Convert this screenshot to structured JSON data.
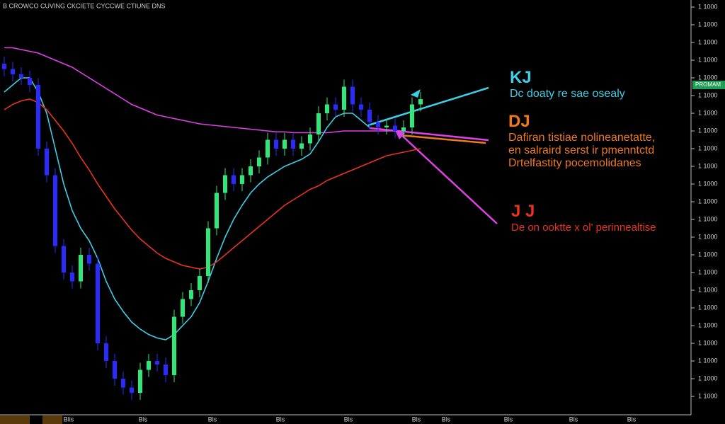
{
  "header": {
    "title": "B CROWCO CUVING CKCIETE CYCCWE CTIUNE DNS"
  },
  "chart_data": {
    "type": "candlestick",
    "ylim": [
      0,
      23.4
    ],
    "yticks": [
      {
        "value": 1,
        "label": "1 1000"
      },
      {
        "value": 2,
        "label": "1 1000"
      },
      {
        "value": 3,
        "label": "1 1000"
      },
      {
        "value": 4,
        "label": "1 1000"
      },
      {
        "value": 5,
        "label": "1 1000"
      },
      {
        "value": 6,
        "label": "1 1000"
      },
      {
        "value": 7,
        "label": "1 1000"
      },
      {
        "value": 8,
        "label": "1 1000"
      },
      {
        "value": 9,
        "label": "1 1000"
      },
      {
        "value": 10,
        "label": "1 1000"
      },
      {
        "value": 11,
        "label": "1 1000"
      },
      {
        "value": 12,
        "label": "1 1000"
      },
      {
        "value": 13,
        "label": "1 1000"
      },
      {
        "value": 14,
        "label": "1 1000"
      },
      {
        "value": 15,
        "label": "1 1000"
      },
      {
        "value": 16,
        "label": "1 1000"
      },
      {
        "value": 17,
        "label": "1 1000"
      },
      {
        "value": 18,
        "label": "1 1000"
      },
      {
        "value": 19,
        "label": "1 1000"
      },
      {
        "value": 20,
        "label": "1 1000"
      },
      {
        "value": 21,
        "label": "1 1000"
      },
      {
        "value": 22,
        "label": "1 1000"
      },
      {
        "value": 23,
        "label": "1 1000"
      }
    ],
    "price_badge": {
      "value": 18.6,
      "label": "PROMAM"
    },
    "x_labels": [
      "Blis",
      "Bls",
      "Bls",
      "Bls",
      "Bls",
      "Bls",
      "Bls",
      "Bls",
      "Bls",
      "Bls"
    ],
    "up_color": "#2ee87a",
    "down_color": "#2b2bff",
    "open": [
      19.8,
      19.5,
      19.2,
      19.0,
      18.6,
      15.0,
      13.5,
      9.5,
      8.0,
      7.5,
      9.0,
      8.5,
      4.0,
      3.0,
      2.0,
      1.5,
      1.2,
      2.5,
      3.0,
      2.8,
      2.2,
      5.5,
      6.5,
      7.0,
      7.8,
      10.5,
      12.5,
      13.5,
      13.0,
      13.5,
      14.0,
      14.5,
      15.5,
      15.0,
      15.5,
      15.0,
      15.3,
      15.8,
      17.0,
      17.5,
      17.2,
      18.5,
      17.5,
      17.2,
      16.5,
      16.2,
      16.3,
      16.0,
      16.2,
      17.5
    ],
    "high": [
      20.2,
      19.9,
      19.6,
      19.4,
      19.0,
      15.4,
      13.9,
      9.9,
      8.4,
      9.4,
      9.4,
      8.9,
      4.4,
      3.4,
      2.4,
      1.9,
      2.9,
      3.4,
      3.4,
      3.2,
      5.9,
      6.9,
      7.4,
      8.2,
      10.9,
      12.9,
      13.9,
      13.9,
      13.9,
      14.4,
      14.9,
      15.9,
      15.9,
      15.9,
      15.9,
      15.7,
      16.2,
      17.4,
      17.9,
      17.9,
      18.9,
      18.9,
      17.9,
      17.6,
      16.9,
      16.7,
      16.7,
      16.6,
      17.9,
      18.2
    ],
    "low": [
      19.1,
      18.8,
      18.6,
      18.2,
      14.6,
      13.1,
      9.1,
      7.6,
      7.1,
      7.1,
      8.1,
      3.6,
      2.6,
      1.6,
      1.1,
      0.8,
      0.8,
      2.1,
      2.4,
      1.8,
      1.8,
      5.1,
      6.1,
      6.6,
      7.4,
      10.1,
      12.1,
      12.6,
      12.6,
      13.1,
      13.6,
      14.1,
      14.6,
      14.6,
      14.6,
      14.6,
      14.9,
      15.4,
      16.6,
      16.8,
      16.8,
      17.1,
      16.8,
      16.1,
      15.8,
      15.8,
      15.6,
      15.6,
      15.8,
      17.1
    ],
    "close": [
      19.5,
      19.2,
      19.0,
      18.6,
      15.0,
      13.5,
      9.5,
      8.0,
      7.5,
      9.0,
      8.5,
      4.0,
      3.0,
      2.0,
      1.5,
      1.2,
      2.5,
      3.0,
      2.8,
      2.2,
      5.5,
      6.5,
      7.0,
      7.8,
      10.5,
      12.5,
      13.5,
      13.0,
      13.5,
      14.0,
      14.5,
      15.5,
      15.0,
      15.5,
      15.0,
      15.3,
      15.8,
      17.0,
      17.5,
      17.2,
      18.5,
      17.5,
      17.2,
      16.5,
      16.2,
      16.3,
      16.0,
      16.2,
      17.5,
      17.8
    ],
    "series": [
      {
        "color": "#e040e8",
        "values": [
          20.7,
          20.7,
          20.6,
          20.5,
          20.4,
          20.2,
          20.0,
          19.8,
          19.6,
          19.3,
          19.0,
          18.7,
          18.4,
          18.1,
          17.8,
          17.5,
          17.3,
          17.1,
          16.9,
          16.8,
          16.7,
          16.6,
          16.5,
          16.4,
          16.35,
          16.3,
          16.25,
          16.2,
          16.15,
          16.1,
          16.05,
          16.0,
          15.95,
          15.95,
          15.9,
          15.9,
          15.9,
          15.9,
          15.9,
          15.95,
          16.0,
          16.0,
          16.0,
          16.0,
          16.0,
          16.0,
          16.0,
          null,
          null,
          null
        ]
      },
      {
        "color": "#3ccfe8",
        "values": [
          18.2,
          18.6,
          19.0,
          19.0,
          18.2,
          17.0,
          15.0,
          13.0,
          11.5,
          10.5,
          9.8,
          8.8,
          7.5,
          6.5,
          5.8,
          5.2,
          4.8,
          4.5,
          4.3,
          4.2,
          4.5,
          5.0,
          5.5,
          6.3,
          7.5,
          8.8,
          10.0,
          11.0,
          11.8,
          12.5,
          13.0,
          13.4,
          13.7,
          14.0,
          14.2,
          14.4,
          14.7,
          15.4,
          16.2,
          16.8,
          17.0,
          17.0,
          16.6,
          16.2,
          null,
          null,
          null,
          null,
          null,
          null
        ]
      },
      {
        "color": "#e8331f",
        "values": [
          17.2,
          17.5,
          17.7,
          17.8,
          17.6,
          17.2,
          16.6,
          16.0,
          15.3,
          14.5,
          13.8,
          13.0,
          12.3,
          11.6,
          11.0,
          10.4,
          9.9,
          9.5,
          9.1,
          8.8,
          8.6,
          8.4,
          8.3,
          8.2,
          8.3,
          8.6,
          9.0,
          9.4,
          9.8,
          10.2,
          10.6,
          11.0,
          11.4,
          11.8,
          12.1,
          12.4,
          12.7,
          12.9,
          13.2,
          13.4,
          13.6,
          13.8,
          14.0,
          14.2,
          14.4,
          14.6,
          14.7,
          14.8,
          14.9,
          15.0
        ]
      }
    ]
  },
  "annotations": {
    "kj": {
      "title": "KJ",
      "lines": [
        "Dc doaty re sae osealy"
      ]
    },
    "dj": {
      "title": "DJ",
      "lines": [
        "Dafiran tistiae nolineanetatte,",
        "en salraird serst ir pmenntctd",
        "Drtelfastity pocemolidanes"
      ]
    },
    "jj": {
      "title": "J J",
      "lines": [
        "De on ooktte x ol' perinnealtise"
      ]
    }
  }
}
